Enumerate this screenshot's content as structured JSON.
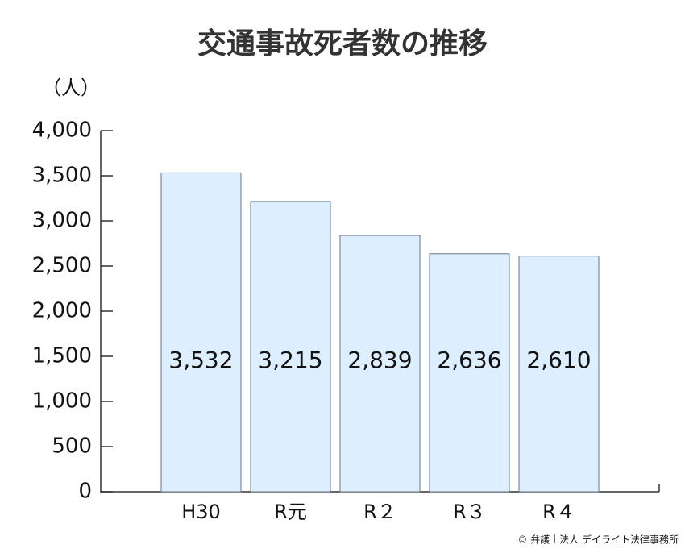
{
  "chart_data": {
    "type": "bar",
    "title": "交通事故死者数の推移",
    "y_label": "（人）",
    "categories": [
      "H30",
      "R元",
      "R２",
      "R３",
      "R４"
    ],
    "values": [
      3532,
      3215,
      2839,
      2636,
      2610
    ],
    "value_labels": [
      "3,532",
      "3,215",
      "2,839",
      "2,636",
      "2,610"
    ],
    "color": "#ddeeff",
    "ylim": [
      0,
      4000
    ],
    "yticks": [
      0,
      500,
      {
        "value": 1000,
        "label": "1,000"
      },
      {
        "value": 1500,
        "label": "1,500"
      },
      {
        "value": 2000,
        "label": "2,000"
      },
      {
        "value": 2500,
        "label": "2,500"
      },
      {
        "value": 3000,
        "label": "3,000"
      },
      {
        "value": 3500,
        "label": "3,500"
      },
      {
        "value": 4000,
        "label": "4,000"
      }
    ],
    "grid": false,
    "source": "© 弁護士法人 デイライト法律事務所"
  }
}
